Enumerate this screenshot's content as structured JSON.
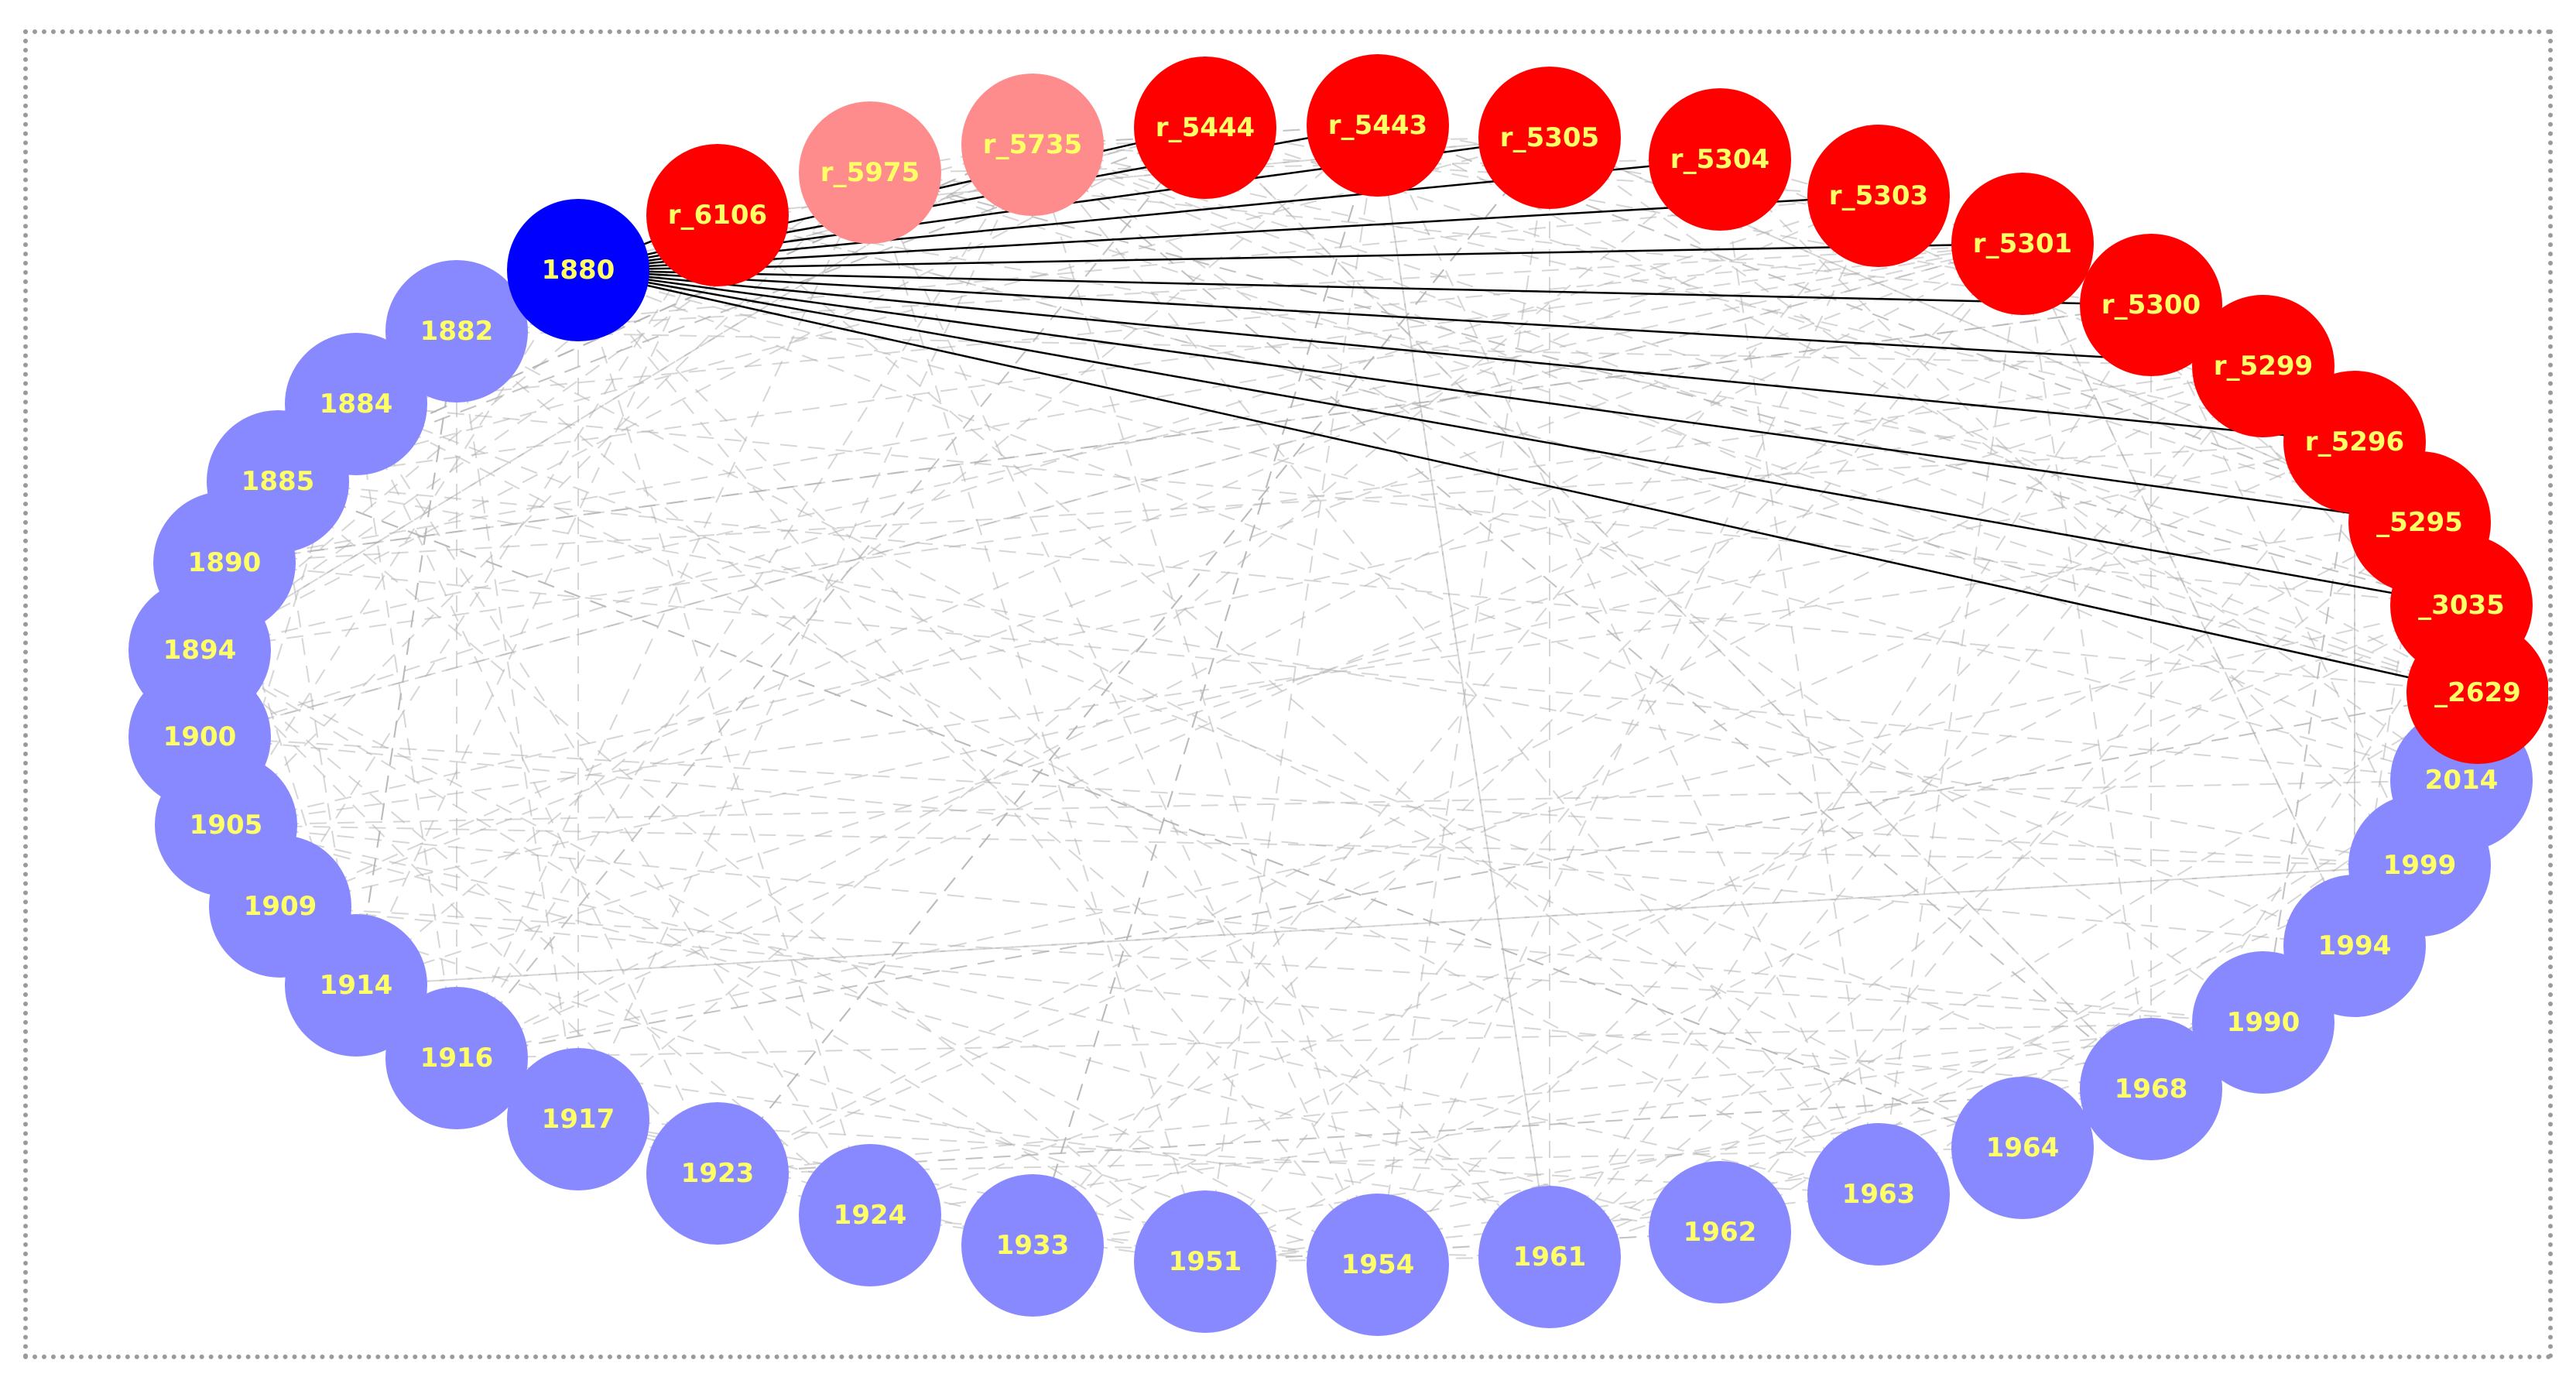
{
  "colors": {
    "focus": "#0000ff",
    "active_record": "#ff0000",
    "faded_record": "#ff8c8c",
    "year": "#8888ff",
    "label": "#ffff66",
    "edge": "#000000",
    "background_edge": "#b4b4b4"
  },
  "focus_node": {
    "id": "1880",
    "label": "1880"
  },
  "record_nodes": [
    {
      "id": "r_6106",
      "label": "r_6106",
      "state": "active"
    },
    {
      "id": "r_5975",
      "label": "r_5975",
      "state": "faded"
    },
    {
      "id": "r_5735",
      "label": "r_5735",
      "state": "faded"
    },
    {
      "id": "r_5444",
      "label": "r_5444",
      "state": "active"
    },
    {
      "id": "r_5443",
      "label": "r_5443",
      "state": "active"
    },
    {
      "id": "r_5305",
      "label": "r_5305",
      "state": "active"
    },
    {
      "id": "r_5304",
      "label": "r_5304",
      "state": "active"
    },
    {
      "id": "r_5303",
      "label": "r_5303",
      "state": "active"
    },
    {
      "id": "r_5301",
      "label": "r_5301",
      "state": "active"
    },
    {
      "id": "r_5300",
      "label": "r_5300",
      "state": "active"
    },
    {
      "id": "r_5299",
      "label": "r_5299",
      "state": "active"
    },
    {
      "id": "r_5296",
      "label": "r_5296",
      "state": "active"
    },
    {
      "id": "r_5295",
      "label": "_5295",
      "state": "active"
    },
    {
      "id": "r_3035",
      "label": "_3035",
      "state": "active"
    },
    {
      "id": "r_2629",
      "label": "_2629",
      "state": "active"
    }
  ],
  "year_nodes": [
    "1882",
    "1884",
    "1885",
    "1890",
    "1894",
    "1900",
    "1905",
    "1909",
    "1914",
    "1916",
    "1917",
    "1923",
    "1924",
    "1933",
    "1951",
    "1954",
    "1961",
    "1962",
    "1963",
    "1964",
    "1968",
    "1990",
    "1994",
    "1999",
    "2014"
  ],
  "edges_from_focus": [
    "r_6106",
    "r_5444",
    "r_5443",
    "r_5305",
    "r_5304",
    "r_5303",
    "r_5301",
    "r_5300",
    "r_5299",
    "r_5296",
    "r_5295",
    "r_3035",
    "r_2629"
  ]
}
